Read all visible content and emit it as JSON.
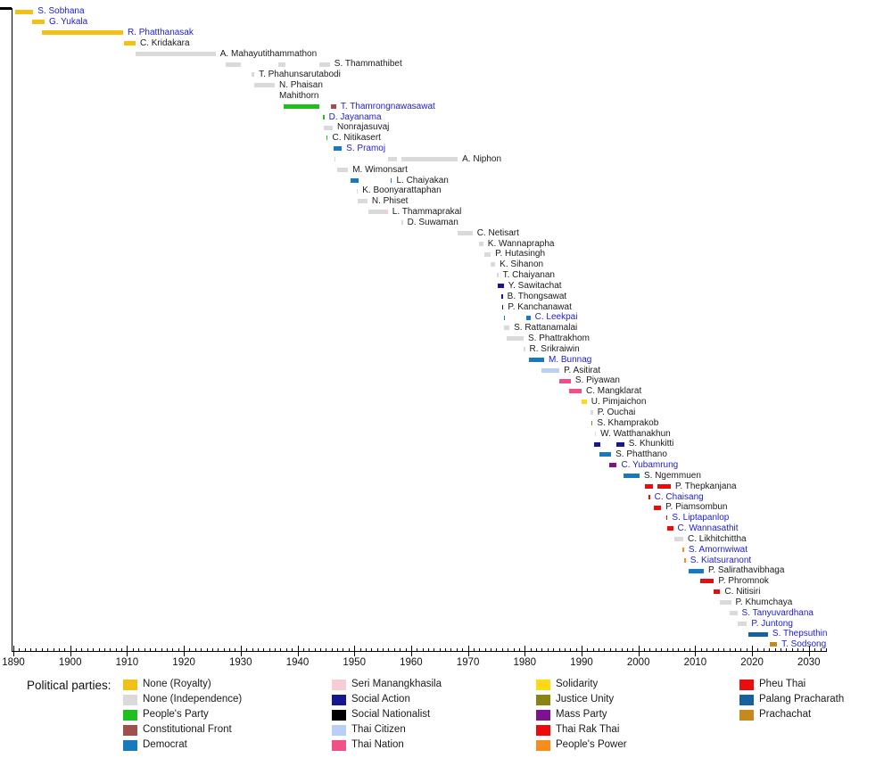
{
  "page": {
    "background": "#ffffff",
    "link_color": "#2020d0",
    "text_color": "#1a1a1a"
  },
  "parties": {
    "royalty": "#f2c114",
    "independence": "#dadada",
    "peoples_party": "#1fbf1f",
    "constitutional_front": "#a34e4e",
    "democrat": "#1779bf",
    "seri_manangkhasila": "#f7cdd5",
    "social_action": "#17178f",
    "social_nationalist": "#000000",
    "thai_citizen": "#bacff5",
    "thai_nation": "#f24e87",
    "solidarity": "#ffd911",
    "justice_unity": "#8a8211",
    "mass_party": "#7e1190",
    "thai_rak_thai": "#ee0a0a",
    "peoples_power": "#fa8c1e",
    "pheu_thai": "#e90e0e",
    "palang_pracharath": "#16619f",
    "prachachat": "#c5891c"
  },
  "legend": {
    "title": "Political parties:",
    "columns": [
      [
        {
          "label": "None (Royalty)",
          "party": "royalty"
        },
        {
          "label": "None (Independence)",
          "party": "independence"
        },
        {
          "label": "People's Party",
          "party": "peoples_party"
        },
        {
          "label": "Constitutional Front",
          "party": "constitutional_front"
        },
        {
          "label": "Democrat",
          "party": "democrat"
        }
      ],
      [
        {
          "label": "Seri Manangkhasila",
          "party": "seri_manangkhasila"
        },
        {
          "label": "Social Action",
          "party": "social_action"
        },
        {
          "label": "Social Nationalist",
          "party": "social_nationalist"
        },
        {
          "label": "Thai Citizen",
          "party": "thai_citizen"
        },
        {
          "label": "Thai Nation",
          "party": "thai_nation"
        }
      ],
      [
        {
          "label": "Solidarity",
          "party": "solidarity"
        },
        {
          "label": "Justice Unity",
          "party": "justice_unity"
        },
        {
          "label": "Mass Party",
          "party": "mass_party"
        },
        {
          "label": "Thai Rak Thai",
          "party": "thai_rak_thai"
        },
        {
          "label": "People's Power",
          "party": "peoples_power"
        }
      ],
      [
        {
          "label": "Pheu Thai",
          "party": "pheu_thai"
        },
        {
          "label": "Palang Pracharath",
          "party": "palang_pracharath"
        },
        {
          "label": "Prachachat",
          "party": "prachachat"
        }
      ]
    ]
  },
  "chart_data": {
    "type": "timeline",
    "title": "",
    "xlabel": "",
    "x_axis": {
      "min": 1890,
      "max": 2033,
      "major_tick_interval": 10,
      "minor_tick_interval": 1,
      "tick_labels": [
        "1890",
        "1900",
        "1910",
        "1920",
        "1930",
        "1940",
        "1950",
        "1960",
        "1970",
        "1980",
        "1990",
        "2000",
        "2010",
        "2020",
        "2030"
      ]
    },
    "people": [
      {
        "name": "S. Sobhana",
        "link": true,
        "segments": [
          {
            "party": "royalty",
            "start": 1890.3,
            "end": 1893.5
          }
        ]
      },
      {
        "name": "G. Yukala",
        "link": true,
        "segments": [
          {
            "party": "royalty",
            "start": 1893.3,
            "end": 1895.5
          }
        ]
      },
      {
        "name": "R. Phatthanasak",
        "link": true,
        "segments": [
          {
            "party": "royalty",
            "start": 1895.0,
            "end": 1909.3
          }
        ]
      },
      {
        "name": "C. Kridakara",
        "link": false,
        "segments": [
          {
            "party": "royalty",
            "start": 1909.5,
            "end": 1911.5
          }
        ]
      },
      {
        "name": "A. Mahayutithammathon",
        "link": false,
        "segments": [
          {
            "party": "independence",
            "start": 1911.5,
            "end": 1925.6
          }
        ]
      },
      {
        "name": "S. Thammathibet",
        "link": false,
        "segments": [
          {
            "party": "independence",
            "start": 1927.4,
            "end": 1930.0
          },
          {
            "party": "independence",
            "start": 1936.6,
            "end": 1937.9
          },
          {
            "party": "independence",
            "start": 1943.9,
            "end": 1945.7
          }
        ]
      },
      {
        "name": "T. Phahunsarutabodi",
        "link": false,
        "segments": [
          {
            "party": "independence",
            "start": 1931.9,
            "end": 1932.4
          }
        ]
      },
      {
        "name": "N. Phaisan Mahithorn",
        "name_lines": [
          "N. Phaisan",
          "Mahithorn"
        ],
        "link": false,
        "segments": [
          {
            "party": "independence",
            "start": 1932.4,
            "end": 1936.0
          }
        ]
      },
      {
        "name": "T. Thamrongnawasawat",
        "link": true,
        "segments": [
          {
            "party": "peoples_party",
            "start": 1937.6,
            "end": 1943.8
          },
          {
            "party": "constitutional_front",
            "start": 1945.9,
            "end": 1946.8
          }
        ]
      },
      {
        "name": "D. Jayanama",
        "link": true,
        "segments": [
          {
            "party": "peoples_party",
            "start": 1944.5,
            "end": 1944.7
          }
        ]
      },
      {
        "name": "Nonrajasuvaj",
        "link": false,
        "segments": [
          {
            "party": "independence",
            "start": 1944.6,
            "end": 1946.2
          }
        ]
      },
      {
        "name": "C. Nitikasert",
        "link": false,
        "segments": [
          {
            "party": "peoples_party",
            "start": 1945.1,
            "end": 1945.3
          }
        ]
      },
      {
        "name": "S. Pramoj",
        "link": true,
        "segments": [
          {
            "party": "democrat",
            "start": 1946.4,
            "end": 1947.8
          }
        ]
      },
      {
        "name": "A. Niphon",
        "link": false,
        "segments": [
          {
            "party": "independence",
            "start": 1946.5,
            "end": 1946.7
          },
          {
            "party": "independence",
            "start": 1955.9,
            "end": 1957.5
          },
          {
            "party": "independence",
            "start": 1958.3,
            "end": 1968.2
          }
        ]
      },
      {
        "name": "M. Wimonsart",
        "link": false,
        "segments": [
          {
            "party": "independence",
            "start": 1947.0,
            "end": 1948.9
          }
        ]
      },
      {
        "name": "L. Chaiyakan",
        "link": false,
        "segments": [
          {
            "party": "democrat",
            "start": 1949.3,
            "end": 1950.8
          },
          {
            "party": "democrat",
            "start": 1956.4,
            "end": 1956.6
          }
        ]
      },
      {
        "name": "K. Boonyarattaphan",
        "link": false,
        "segments": [
          {
            "party": "independence",
            "start": 1950.4,
            "end": 1950.6
          }
        ]
      },
      {
        "name": "N. Phiset",
        "link": false,
        "segments": [
          {
            "party": "independence",
            "start": 1950.6,
            "end": 1952.3
          }
        ]
      },
      {
        "name": "L. Thammaprakal",
        "link": false,
        "segments": [
          {
            "party": "independence",
            "start": 1952.5,
            "end": 1955.3
          },
          {
            "party": "seri_manangkhasila",
            "start": 1955.3,
            "end": 1955.9
          }
        ]
      },
      {
        "name": "D. Suwaman",
        "link": false,
        "segments": [
          {
            "party": "independence",
            "start": 1958.3,
            "end": 1958.5
          }
        ]
      },
      {
        "name": "C. Netisart",
        "link": false,
        "segments": [
          {
            "party": "independence",
            "start": 1968.2,
            "end": 1970.8
          }
        ]
      },
      {
        "name": "K. Wannaprapha",
        "link": false,
        "segments": [
          {
            "party": "independence",
            "start": 1971.9,
            "end": 1972.7
          }
        ]
      },
      {
        "name": "P. Hutasingh",
        "link": false,
        "segments": [
          {
            "party": "independence",
            "start": 1972.9,
            "end": 1974.0
          }
        ]
      },
      {
        "name": "K. Sihanon",
        "link": false,
        "segments": [
          {
            "party": "independence",
            "start": 1974.0,
            "end": 1974.8
          }
        ]
      },
      {
        "name": "T. Chaiyanan",
        "link": false,
        "segments": [
          {
            "party": "independence",
            "start": 1975.1,
            "end": 1975.3
          }
        ]
      },
      {
        "name": "Y. Sawitachat",
        "link": false,
        "segments": [
          {
            "party": "social_action",
            "start": 1975.2,
            "end": 1976.3
          }
        ]
      },
      {
        "name": "B. Thongsawat",
        "link": false,
        "segments": [
          {
            "party": "social_action",
            "start": 1975.9,
            "end": 1976.1
          }
        ]
      },
      {
        "name": "P. Kanchanawat",
        "link": false,
        "segments": [
          {
            "party": "social_action",
            "start": 1976.0,
            "end": 1976.2
          }
        ]
      },
      {
        "name": "C. Leekpai",
        "link": true,
        "segments": [
          {
            "party": "democrat",
            "start": 1976.3,
            "end": 1976.5
          },
          {
            "party": "democrat",
            "start": 1980.3,
            "end": 1981.0
          }
        ]
      },
      {
        "name": "S. Rattanamalai",
        "link": false,
        "segments": [
          {
            "party": "independence",
            "start": 1976.4,
            "end": 1977.3
          }
        ]
      },
      {
        "name": "S. Phattrakhom",
        "link": false,
        "segments": [
          {
            "party": "independence",
            "start": 1976.8,
            "end": 1979.8
          }
        ]
      },
      {
        "name": "R. Srikraiwin",
        "link": false,
        "segments": [
          {
            "party": "independence",
            "start": 1979.8,
            "end": 1980.0
          }
        ]
      },
      {
        "name": "M. Bunnag",
        "link": true,
        "segments": [
          {
            "party": "democrat",
            "start": 1980.8,
            "end": 1983.4
          }
        ]
      },
      {
        "name": "P. Asitirat",
        "link": false,
        "segments": [
          {
            "party": "thai_citizen",
            "start": 1982.9,
            "end": 1986.1
          }
        ]
      },
      {
        "name": "S. Piyawan",
        "link": false,
        "segments": [
          {
            "party": "thai_nation",
            "start": 1986.1,
            "end": 1988.1
          }
        ]
      },
      {
        "name": "C. Mangklarat",
        "link": false,
        "segments": [
          {
            "party": "thai_nation",
            "start": 1987.8,
            "end": 1990.0
          }
        ]
      },
      {
        "name": "U. Pimjaichon",
        "link": false,
        "segments": [
          {
            "party": "solidarity",
            "start": 1990.0,
            "end": 1990.9
          }
        ]
      },
      {
        "name": "P. Ouchai",
        "link": false,
        "segments": [
          {
            "party": "independence",
            "start": 1991.6,
            "end": 1992.0
          }
        ]
      },
      {
        "name": "S. Khamprakob",
        "link": false,
        "segments": [
          {
            "party": "justice_unity",
            "start": 1991.7,
            "end": 1991.9
          }
        ]
      },
      {
        "name": "W. Watthanakhun",
        "link": false,
        "segments": [
          {
            "party": "independence",
            "start": 1992.3,
            "end": 1992.5
          }
        ]
      },
      {
        "name": "S. Khunkitti",
        "link": false,
        "segments": [
          {
            "party": "social_action",
            "start": 1992.2,
            "end": 1993.3
          },
          {
            "party": "social_action",
            "start": 1996.2,
            "end": 1997.5
          }
        ]
      },
      {
        "name": "S. Phatthano",
        "link": false,
        "segments": [
          {
            "party": "democrat",
            "start": 1993.1,
            "end": 1995.2
          }
        ]
      },
      {
        "name": "C. Yubamrung",
        "link": true,
        "segments": [
          {
            "party": "mass_party",
            "start": 1994.9,
            "end": 1996.2
          }
        ]
      },
      {
        "name": "S. Ngemmuen",
        "link": false,
        "segments": [
          {
            "party": "democrat",
            "start": 1997.3,
            "end": 2000.2
          }
        ]
      },
      {
        "name": "P. Thepkanjana",
        "link": false,
        "segments": [
          {
            "party": "thai_rak_thai",
            "start": 2001.2,
            "end": 2002.6
          },
          {
            "party": "thai_rak_thai",
            "start": 2003.4,
            "end": 2005.7
          }
        ]
      },
      {
        "name": "C. Chaisang",
        "link": true,
        "segments": [
          {
            "party": "thai_rak_thai",
            "start": 2001.8,
            "end": 2002.0
          }
        ]
      },
      {
        "name": "P. Piamsombun",
        "link": false,
        "segments": [
          {
            "party": "thai_rak_thai",
            "start": 2002.7,
            "end": 2004.0
          }
        ]
      },
      {
        "name": "S. Liptapanlop",
        "link": true,
        "segments": [
          {
            "party": "thai_rak_thai",
            "start": 2004.9,
            "end": 2005.1
          }
        ]
      },
      {
        "name": "C. Wannasathit",
        "link": true,
        "segments": [
          {
            "party": "thai_rak_thai",
            "start": 2005.0,
            "end": 2006.1
          }
        ]
      },
      {
        "name": "C. Likhitchittha",
        "link": false,
        "segments": [
          {
            "party": "independence",
            "start": 2006.3,
            "end": 2007.9
          }
        ]
      },
      {
        "name": "S. Amornwiwat",
        "link": true,
        "segments": [
          {
            "party": "peoples_power",
            "start": 2007.8,
            "end": 2008.0
          }
        ]
      },
      {
        "name": "S. Kiatsuranont",
        "link": true,
        "segments": [
          {
            "party": "peoples_power",
            "start": 2008.1,
            "end": 2008.3
          }
        ]
      },
      {
        "name": "P. Salirathavibhaga",
        "link": false,
        "segments": [
          {
            "party": "democrat",
            "start": 2008.8,
            "end": 2011.5
          }
        ]
      },
      {
        "name": "P. Phromnok",
        "link": false,
        "segments": [
          {
            "party": "pheu_thai",
            "start": 2010.9,
            "end": 2013.3
          }
        ]
      },
      {
        "name": "C. Nitisiri",
        "link": false,
        "segments": [
          {
            "party": "pheu_thai",
            "start": 2013.3,
            "end": 2014.4
          }
        ]
      },
      {
        "name": "P. Khumchaya",
        "link": false,
        "segments": [
          {
            "party": "independence",
            "start": 2014.3,
            "end": 2016.3
          }
        ]
      },
      {
        "name": "S. Tanyuvardhana",
        "link": true,
        "segments": [
          {
            "party": "independence",
            "start": 2016.0,
            "end": 2017.4
          }
        ]
      },
      {
        "name": "P. Juntong",
        "link": true,
        "segments": [
          {
            "party": "independence",
            "start": 2017.4,
            "end": 2019.1
          }
        ]
      },
      {
        "name": "S. Thepsuthin",
        "link": true,
        "segments": [
          {
            "party": "palang_pracharath",
            "start": 2019.3,
            "end": 2022.8
          }
        ]
      },
      {
        "name": "T. Sodsong",
        "link": true,
        "segments": [
          {
            "party": "prachachat",
            "start": 2023.1,
            "end": 2024.4
          }
        ]
      }
    ]
  }
}
